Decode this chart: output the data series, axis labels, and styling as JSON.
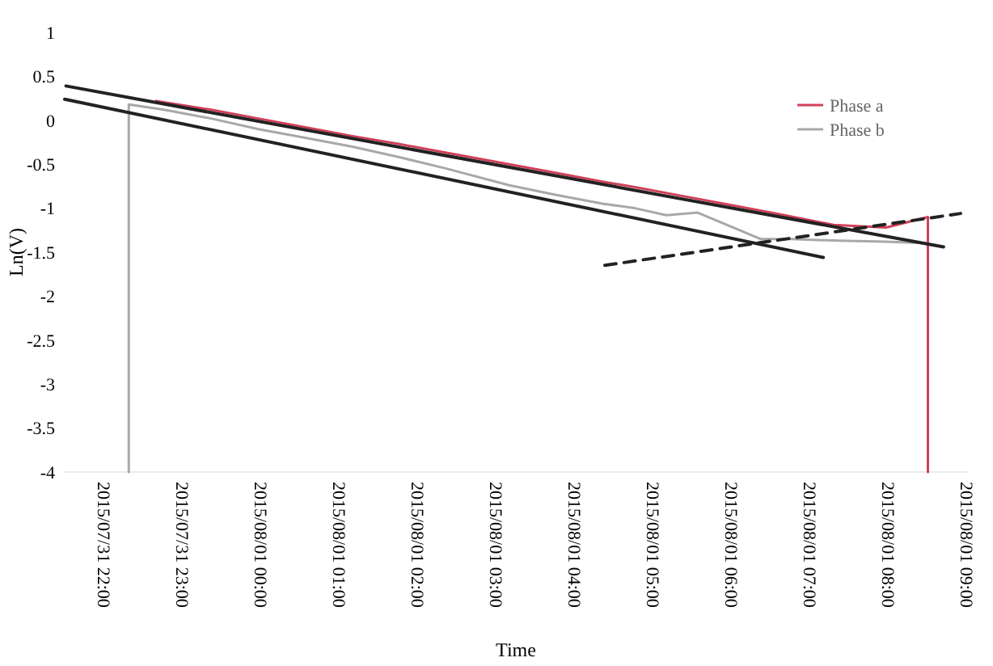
{
  "chart_data": {
    "type": "line",
    "ylabel": "Ln(V)",
    "xlabel": "Time",
    "legend": "top right",
    "grid": false,
    "xlim": [
      "2015-07-31T21:30",
      "2015-08-01T09:00"
    ],
    "xticks": [
      {
        "value": "2015-07-31T22:00",
        "label": "2015/07/31 22:00"
      },
      {
        "value": "2015-07-31T23:00",
        "label": "2015/07/31 23:00"
      },
      {
        "value": "2015-08-01T00:00",
        "label": "2015/08/01 00:00"
      },
      {
        "value": "2015-08-01T01:00",
        "label": "2015/08/01 01:00"
      },
      {
        "value": "2015-08-01T02:00",
        "label": "2015/08/01 02:00"
      },
      {
        "value": "2015-08-01T03:00",
        "label": "2015/08/01 03:00"
      },
      {
        "value": "2015-08-01T04:00",
        "label": "2015/08/01 04:00"
      },
      {
        "value": "2015-08-01T05:00",
        "label": "2015/08/01 05:00"
      },
      {
        "value": "2015-08-01T06:00",
        "label": "2015/08/01 06:00"
      },
      {
        "value": "2015-08-01T07:00",
        "label": "2015/08/01 07:00"
      },
      {
        "value": "2015-08-01T08:00",
        "label": "2015/08/01 08:00"
      },
      {
        "value": "2015-08-01T09:00",
        "label": "2015/08/01 09:00"
      }
    ],
    "ylim": [
      -4,
      1
    ],
    "yticks": [
      1,
      0.5,
      0,
      -0.5,
      -1,
      -1.5,
      -2,
      -2.5,
      -3,
      -3.5,
      -4
    ],
    "series": [
      {
        "name": "Phase a",
        "color": "#d0405a",
        "x": [
          "2015-07-31T22:40",
          "2015-07-31T23:22",
          "2015-07-31T23:58",
          "2015-08-01T00:34",
          "2015-08-01T01:10",
          "2015-08-01T01:46",
          "2015-08-01T02:22",
          "2015-08-01T03:10",
          "2015-08-01T03:46",
          "2015-08-01T04:22",
          "2015-08-01T04:46",
          "2015-08-01T05:22",
          "2015-08-01T05:58",
          "2015-08-01T06:34",
          "2015-08-01T07:18",
          "2015-08-01T07:58",
          "2015-08-01T08:30",
          "2015-08-01T08:30"
        ],
        "values": [
          0.22,
          0.12,
          0.02,
          -0.08,
          -0.18,
          -0.27,
          -0.37,
          -0.5,
          -0.6,
          -0.7,
          -0.76,
          -0.86,
          -0.96,
          -1.06,
          -1.19,
          -1.22,
          -1.1,
          -4
        ]
      },
      {
        "name": "Phase b",
        "color": "#a8a8a8",
        "x": [
          "2015-07-31T22:19",
          "2015-07-31T22:19",
          "2015-07-31T22:46",
          "2015-07-31T23:22",
          "2015-07-31T23:58",
          "2015-08-01T00:34",
          "2015-08-01T01:10",
          "2015-08-01T01:46",
          "2015-08-01T02:22",
          "2015-08-01T03:10",
          "2015-08-01T03:46",
          "2015-08-01T04:22",
          "2015-08-01T04:46",
          "2015-08-01T05:10",
          "2015-08-01T05:34",
          "2015-08-01T05:58",
          "2015-08-01T06:22",
          "2015-08-01T06:46",
          "2015-08-01T07:22",
          "2015-08-01T07:58",
          "2015-08-01T08:30"
        ],
        "values": [
          -4,
          0.18,
          0.12,
          0.02,
          -0.1,
          -0.2,
          -0.3,
          -0.42,
          -0.55,
          -0.74,
          -0.85,
          -0.95,
          -1.0,
          -1.08,
          -1.05,
          -1.2,
          -1.35,
          -1.35,
          -1.37,
          -1.38,
          -1.4
        ]
      },
      {
        "color": "#222222",
        "x": [
          "2015-07-31T21:31",
          "2015-08-01T08:42"
        ],
        "values": [
          0.39,
          -1.44
        ]
      },
      {
        "color": "#222222",
        "x": [
          "2015-07-31T21:30",
          "2015-08-01T07:10"
        ],
        "values": [
          0.24,
          -1.56
        ]
      },
      {
        "color": "#222222",
        "line_style": "dashed",
        "x": [
          "2015-08-01T04:23",
          "2015-08-01T08:55"
        ],
        "values": [
          -1.65,
          -1.06
        ]
      }
    ]
  }
}
